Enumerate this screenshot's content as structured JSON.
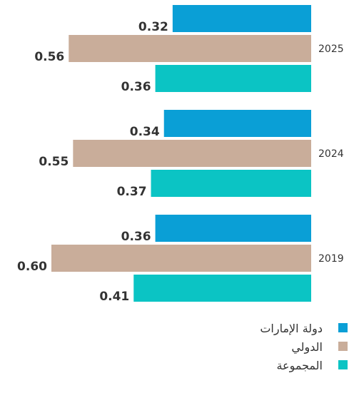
{
  "chart_data": {
    "type": "bar",
    "orientation": "horizontal",
    "categories": [
      "2025",
      "2024",
      "2019"
    ],
    "series": [
      {
        "name": "دولة الإمارات",
        "color": "#0a9fd6",
        "values": [
          0.32,
          0.34,
          0.36
        ],
        "value_labels": [
          "0.32",
          "0.34",
          "0.36"
        ]
      },
      {
        "name": "الدولي",
        "color": "#c9ad9a",
        "values": [
          0.56,
          0.55,
          0.6
        ],
        "value_labels": [
          "0.56",
          "0.55",
          "0.60"
        ]
      },
      {
        "name": "المجموعة",
        "color": "#0bc4c4",
        "values": [
          0.36,
          0.37,
          0.41
        ],
        "value_labels": [
          "0.36",
          "0.37",
          "0.41"
        ]
      }
    ]
  }
}
